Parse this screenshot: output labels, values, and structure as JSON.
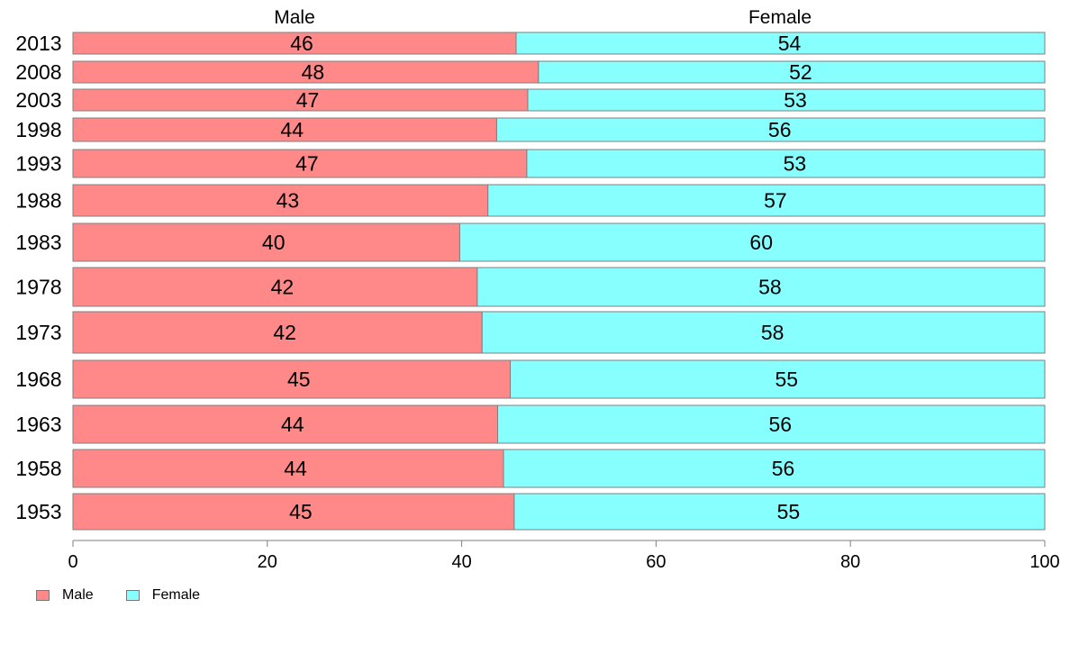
{
  "chart_data": {
    "type": "bar",
    "orientation": "horizontal",
    "stacked": true,
    "categories": [
      "2013",
      "2008",
      "2003",
      "1998",
      "1993",
      "1988",
      "1983",
      "1978",
      "1973",
      "1968",
      "1963",
      "1958",
      "1953"
    ],
    "series": [
      {
        "name": "Male",
        "values": [
          46,
          48,
          47,
          44,
          47,
          43,
          40,
          42,
          42,
          45,
          44,
          44,
          45
        ],
        "color": "#ff8888"
      },
      {
        "name": "Female",
        "values": [
          54,
          52,
          53,
          56,
          53,
          57,
          60,
          58,
          58,
          55,
          56,
          56,
          55
        ],
        "color": "#88ffff"
      }
    ],
    "bar_extent": [
      [
        45.6,
        54.4
      ],
      [
        47.9,
        52.1
      ],
      [
        46.8,
        53.2
      ],
      [
        43.6,
        56.4
      ],
      [
        46.7,
        53.3
      ],
      [
        42.7,
        57.3
      ],
      [
        39.8,
        60.2
      ],
      [
        41.6,
        58.4
      ],
      [
        42.1,
        57.9
      ],
      [
        45.0,
        55.0
      ],
      [
        43.7,
        56.3
      ],
      [
        44.3,
        55.7
      ],
      [
        45.4,
        54.6
      ]
    ],
    "column_headers": [
      "Male",
      "Female"
    ],
    "x_ticks": [
      "0",
      "20",
      "40",
      "60",
      "80",
      "100"
    ],
    "xlim": [
      0,
      100
    ],
    "grid": false,
    "legend_position": "bottom-left"
  }
}
